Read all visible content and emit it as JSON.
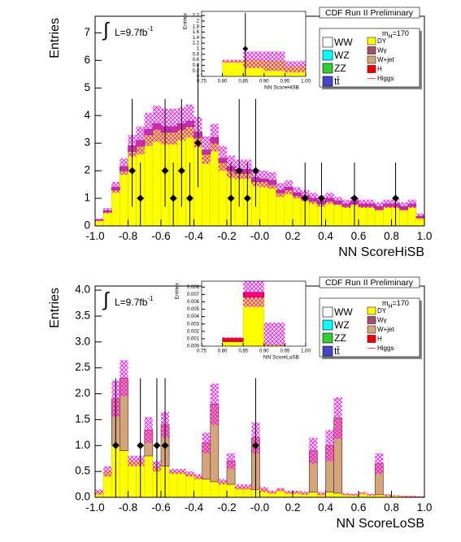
{
  "chart_data": [
    {
      "type": "histogram",
      "title": "CDF Run II Preliminary",
      "x_label": "NN ScoreHiSB",
      "y_label": "Entries",
      "lumi": [
        "∫",
        "L=9.7fb",
        "-1"
      ],
      "mass_label": [
        "m",
        "H",
        "=170"
      ],
      "bins": [
        -1,
        -0.95,
        -0.9,
        -0.85,
        -0.8,
        -0.75,
        -0.7,
        -0.65,
        -0.6,
        -0.55,
        -0.5,
        -0.45,
        -0.4,
        -0.35,
        -0.3,
        -0.25,
        -0.2,
        -0.15,
        -0.1,
        -0.05,
        0,
        0.05,
        0.1,
        0.15,
        0.2,
        0.25,
        0.3,
        0.35,
        0.4,
        0.45,
        0.5,
        0.55,
        0.6,
        0.65,
        0.7,
        0.75,
        0.8,
        0.85,
        0.9,
        0.95,
        1
      ],
      "series": [
        {
          "name": "WW",
          "color": "#ffffff"
        },
        {
          "name": "WZ",
          "color": "#00ffff"
        },
        {
          "name": "ZZ",
          "color": "#33cc33"
        },
        {
          "name": "tt̄",
          "color": "#4646c8"
        },
        {
          "name": "DY",
          "color": "#ffff00",
          "values": [
            0.2,
            0.5,
            1.3,
            2.0,
            2.7,
            2.9,
            3.3,
            3.5,
            3.4,
            3.4,
            3.5,
            3.6,
            3.2,
            2.6,
            3.0,
            2.3,
            2.0,
            1.9,
            1.9,
            1.6,
            1.6,
            1.5,
            1.2,
            1.3,
            1.1,
            1.0,
            0.9,
            0.8,
            0.9,
            0.8,
            0.7,
            0.8,
            0.7,
            0.7,
            0.6,
            0.7,
            0.7,
            0.6,
            0.7,
            0.3
          ]
        },
        {
          "name": "Wγ",
          "color": "#a0506a",
          "values": [
            0.02,
            0.05,
            0.1,
            0.15,
            0.2,
            0.2,
            0.2,
            0.2,
            0.2,
            0.2,
            0.2,
            0.2,
            0.2,
            0.15,
            0.2,
            0.15,
            0.15,
            0.15,
            0.15,
            0.15,
            0.1,
            0.15,
            0.1,
            0.1,
            0.1,
            0.1,
            0.1,
            0.1,
            0.1,
            0.1,
            0.1,
            0.1,
            0.1,
            0.1,
            0.1,
            0.1,
            0.1,
            0.1,
            0.1,
            0.05
          ]
        },
        {
          "name": "W+jet",
          "color": "#d2a679"
        },
        {
          "name": "H",
          "color": "#ee0000"
        },
        {
          "name": "Higgs",
          "color": "#ff5050",
          "style": "line"
        }
      ],
      "uncertainty": {
        "color": "#ff00ff",
        "values": [
          0.05,
          0.1,
          0.2,
          0.3,
          0.4,
          0.5,
          0.6,
          0.65,
          0.65,
          0.65,
          0.6,
          0.6,
          0.55,
          0.5,
          0.5,
          0.45,
          0.4,
          0.35,
          0.35,
          0.3,
          0.3,
          0.3,
          0.25,
          0.25,
          0.2,
          0.2,
          0.2,
          0.2,
          0.2,
          0.15,
          0.15,
          0.15,
          0.15,
          0.15,
          0.15,
          0.15,
          0.15,
          0.15,
          0.15,
          0.1
        ]
      },
      "data": {
        "color": "#000000",
        "x": [
          -0.775,
          -0.725,
          -0.575,
          -0.525,
          -0.475,
          -0.425,
          -0.375,
          -0.175,
          -0.125,
          -0.075,
          -0.025,
          0.275,
          0.375,
          0.575,
          0.825
        ],
        "y": [
          2,
          1,
          2,
          1,
          2,
          1,
          3,
          1,
          2,
          1,
          2,
          1,
          1,
          1,
          1
        ],
        "yerr_low": [
          1.3,
          1,
          1.3,
          1,
          1.3,
          1,
          1.6,
          1,
          1.3,
          1,
          1.3,
          1,
          1,
          1,
          1
        ],
        "yerr_high": [
          2.6,
          1.3,
          2.6,
          1.3,
          2.6,
          1.3,
          2.9,
          1.3,
          2.6,
          1.3,
          2.6,
          1.3,
          1.3,
          1.3,
          1.3
        ]
      },
      "xlim": [
        -1,
        1
      ],
      "ylim": [
        0,
        7.6
      ],
      "xticks": [
        {
          "value": -1,
          "label": "-1.0"
        },
        -0.8,
        -0.6,
        -0.4,
        -0.2,
        {
          "value": 0,
          "label": "-0.0"
        },
        0.2,
        0.4,
        0.6,
        0.8,
        {
          "value": 1,
          "label": "1.0"
        }
      ],
      "yticks": [
        0,
        1,
        2,
        3,
        4,
        5,
        6,
        7
      ],
      "inset": {
        "x_label": "NN ScoreHiSB",
        "y_label": "Entries",
        "bins": [
          0.75,
          0.8,
          0.85,
          0.9,
          0.95,
          1
        ],
        "xlim": [
          0.75,
          1
        ],
        "ylim": [
          0,
          2.35
        ],
        "xticks": [
          0.75,
          {
            "value": 0.8,
            "label": "0.80"
          },
          0.85,
          {
            "value": 0.9,
            "label": "0.90"
          },
          0.95,
          {
            "value": 1,
            "label": "1.00"
          }
        ],
        "yticks": [
          0,
          0.2,
          0.4,
          0.6,
          0.8,
          1,
          1.2,
          1.4,
          1.6,
          1.8,
          2,
          2.2
        ],
        "stack": [
          {
            "color": "#ffff00",
            "values": [
              0,
              0.55,
              0.6,
              0.55,
              0.35
            ]
          }
        ],
        "uncertainty": {
          "color": "#ff00ff",
          "values": [
            0,
            0.05,
            0.3,
            0.35,
            0.2
          ]
        },
        "data": {
          "color": "#000000",
          "x": [
            0.855
          ],
          "y": [
            1
          ],
          "yerr_low": [
            1
          ],
          "yerr_high": [
            1.3
          ]
        }
      }
    },
    {
      "type": "histogram",
      "title": "CDF Run II Preliminary",
      "x_label": "NN ScoreLoSB",
      "y_label": "Entries",
      "lumi": [
        "∫",
        "L=9.7fb",
        "-1"
      ],
      "mass_label": [
        "m",
        "H",
        "=170"
      ],
      "bins": [
        -1,
        -0.95,
        -0.9,
        -0.85,
        -0.8,
        -0.75,
        -0.7,
        -0.65,
        -0.6,
        -0.55,
        -0.5,
        -0.45,
        -0.4,
        -0.35,
        -0.3,
        -0.25,
        -0.2,
        -0.15,
        -0.1,
        -0.05,
        0,
        0.05,
        0.1,
        0.15,
        0.2,
        0.25,
        0.3,
        0.35,
        0.4,
        0.45,
        0.5,
        0.55,
        0.6,
        0.65,
        0.7,
        0.75,
        0.8,
        0.85,
        0.9,
        0.95,
        1
      ],
      "series": [
        {
          "name": "WW",
          "color": "#ffffff"
        },
        {
          "name": "WZ",
          "color": "#00ffff"
        },
        {
          "name": "ZZ",
          "color": "#33cc33"
        },
        {
          "name": "tt̄",
          "color": "#4646c8"
        },
        {
          "name": "DY",
          "color": "#ffff00",
          "values": [
            0.1,
            0.5,
            1.0,
            0.9,
            0.7,
            0.7,
            0.8,
            0.6,
            0.6,
            0.5,
            0.5,
            0.45,
            0.4,
            0.35,
            0.3,
            0.3,
            0.25,
            0.2,
            0.2,
            0.15,
            0.15,
            0.1,
            0.15,
            0.1,
            0.1,
            0.08,
            0.1,
            0.07,
            0.1,
            0.08,
            0.06,
            0.05,
            0.08,
            0.05,
            0.05,
            0.04,
            0.03,
            0.02,
            0.02,
            0.01
          ]
        },
        {
          "name": "Wγ",
          "color": "#a0506a"
        },
        {
          "name": "W+jet",
          "color": "#d2a679",
          "values": [
            0,
            0,
            0.9,
            1.4,
            0,
            0,
            0.5,
            0,
            0.8,
            0,
            0,
            0,
            0,
            0.7,
            1.5,
            0,
            0.45,
            0,
            0,
            1.0,
            0,
            0,
            0,
            0,
            0,
            0,
            0.8,
            0,
            0.9,
            1.45,
            0,
            0,
            0,
            0,
            0.6,
            0,
            0,
            0,
            0,
            0
          ]
        },
        {
          "name": "H",
          "color": "#ee0000"
        },
        {
          "name": "Higgs",
          "color": "#ff5050",
          "style": "line"
        }
      ],
      "uncertainty": {
        "color": "#ff00ff",
        "values": [
          0.05,
          0.1,
          0.35,
          0.35,
          0.1,
          0.1,
          0.25,
          0.1,
          0.25,
          0.05,
          0.05,
          0.05,
          0.05,
          0.2,
          0.4,
          0.05,
          0.15,
          0.05,
          0.05,
          0.3,
          0.05,
          0.03,
          0.03,
          0.03,
          0.03,
          0.03,
          0.25,
          0.03,
          0.3,
          0.4,
          0.02,
          0.02,
          0.02,
          0.02,
          0.2,
          0.02,
          0.01,
          0.01,
          0.01,
          0.01
        ]
      },
      "data": {
        "color": "#000000",
        "x": [
          -0.875,
          -0.725,
          -0.625,
          -0.575,
          -0.025
        ],
        "y": [
          1,
          1,
          1,
          1,
          1
        ],
        "yerr_low": [
          1,
          1,
          1,
          1,
          1
        ],
        "yerr_high": [
          1.3,
          1.3,
          1.3,
          1.3,
          1.3
        ]
      },
      "xlim": [
        -1,
        1
      ],
      "ylim": [
        0,
        4.08
      ],
      "xticks": [
        {
          "value": -1,
          "label": "-1.0"
        },
        -0.8,
        -0.6,
        -0.4,
        -0.2,
        {
          "value": 0,
          "label": "-0.0"
        },
        0.2,
        0.4,
        0.6,
        0.8,
        {
          "value": 1,
          "label": "1.0"
        }
      ],
      "yticks": [
        {
          "value": 0,
          "label": "0.0"
        },
        0.5,
        {
          "value": 1,
          "label": "1.0"
        },
        1.5,
        {
          "value": 2,
          "label": "2.0"
        },
        2.5,
        {
          "value": 3,
          "label": "3.0"
        },
        3.5,
        {
          "value": 4,
          "label": "4.0"
        }
      ],
      "inset": {
        "x_label": "NN ScoreLoSB",
        "y_label": "Entries",
        "bins": [
          0.75,
          0.8,
          0.85,
          0.9,
          0.95,
          1
        ],
        "xlim": [
          0.75,
          1
        ],
        "ylim": [
          0,
          0.0088
        ],
        "xticks": [
          0.75,
          {
            "value": 0.8,
            "label": "0.80"
          },
          0.85,
          {
            "value": 0.9,
            "label": "0.90"
          },
          0.95,
          {
            "value": 1,
            "label": "1.00"
          }
        ],
        "yticks": [
          {
            "value": 0,
            "label": "0.000"
          },
          {
            "value": 0.001,
            "label": "0.001"
          },
          {
            "value": 0.002,
            "label": "0.002"
          },
          {
            "value": 0.003,
            "label": "0.003"
          },
          {
            "value": 0.004,
            "label": "0.004"
          },
          {
            "value": 0.005,
            "label": "0.005"
          },
          {
            "value": 0.006,
            "label": "0.006"
          },
          {
            "value": 0.007,
            "label": "0.007"
          },
          {
            "value": 0.008,
            "label": "0.008"
          }
        ],
        "stack": [
          {
            "color": "#ffff00",
            "values": [
              0,
              0.0006,
              0.0066,
              0.0002,
              0
            ]
          },
          {
            "color": "#ee0000",
            "values": [
              0,
              0.0005,
              0.0007,
              0,
              0
            ]
          }
        ],
        "uncertainty": {
          "color": "#ff00ff",
          "values": [
            0,
            0.0001,
            0.002,
            0.003,
            0
          ]
        }
      }
    }
  ]
}
